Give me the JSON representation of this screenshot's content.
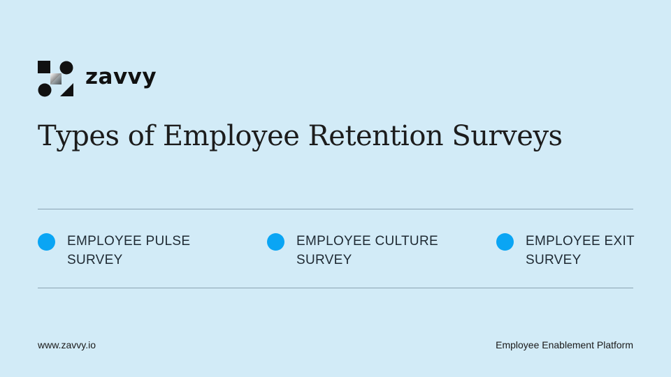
{
  "brand": {
    "name": "zavvy"
  },
  "title": "Types of Employee Retention Surveys",
  "items": [
    {
      "line1": "EMPLOYEE PULSE",
      "line2": "SURVEY"
    },
    {
      "line1": "EMPLOYEE CULTURE",
      "line2": "SURVEY"
    },
    {
      "line1": "EMPLOYEE EXIT",
      "line2": "SURVEY"
    }
  ],
  "footer": {
    "url": "www.zavvy.io",
    "tagline": "Employee Enablement Platform"
  },
  "colors": {
    "background": "#d2ebf7",
    "bullet": "#0aa5f4"
  }
}
